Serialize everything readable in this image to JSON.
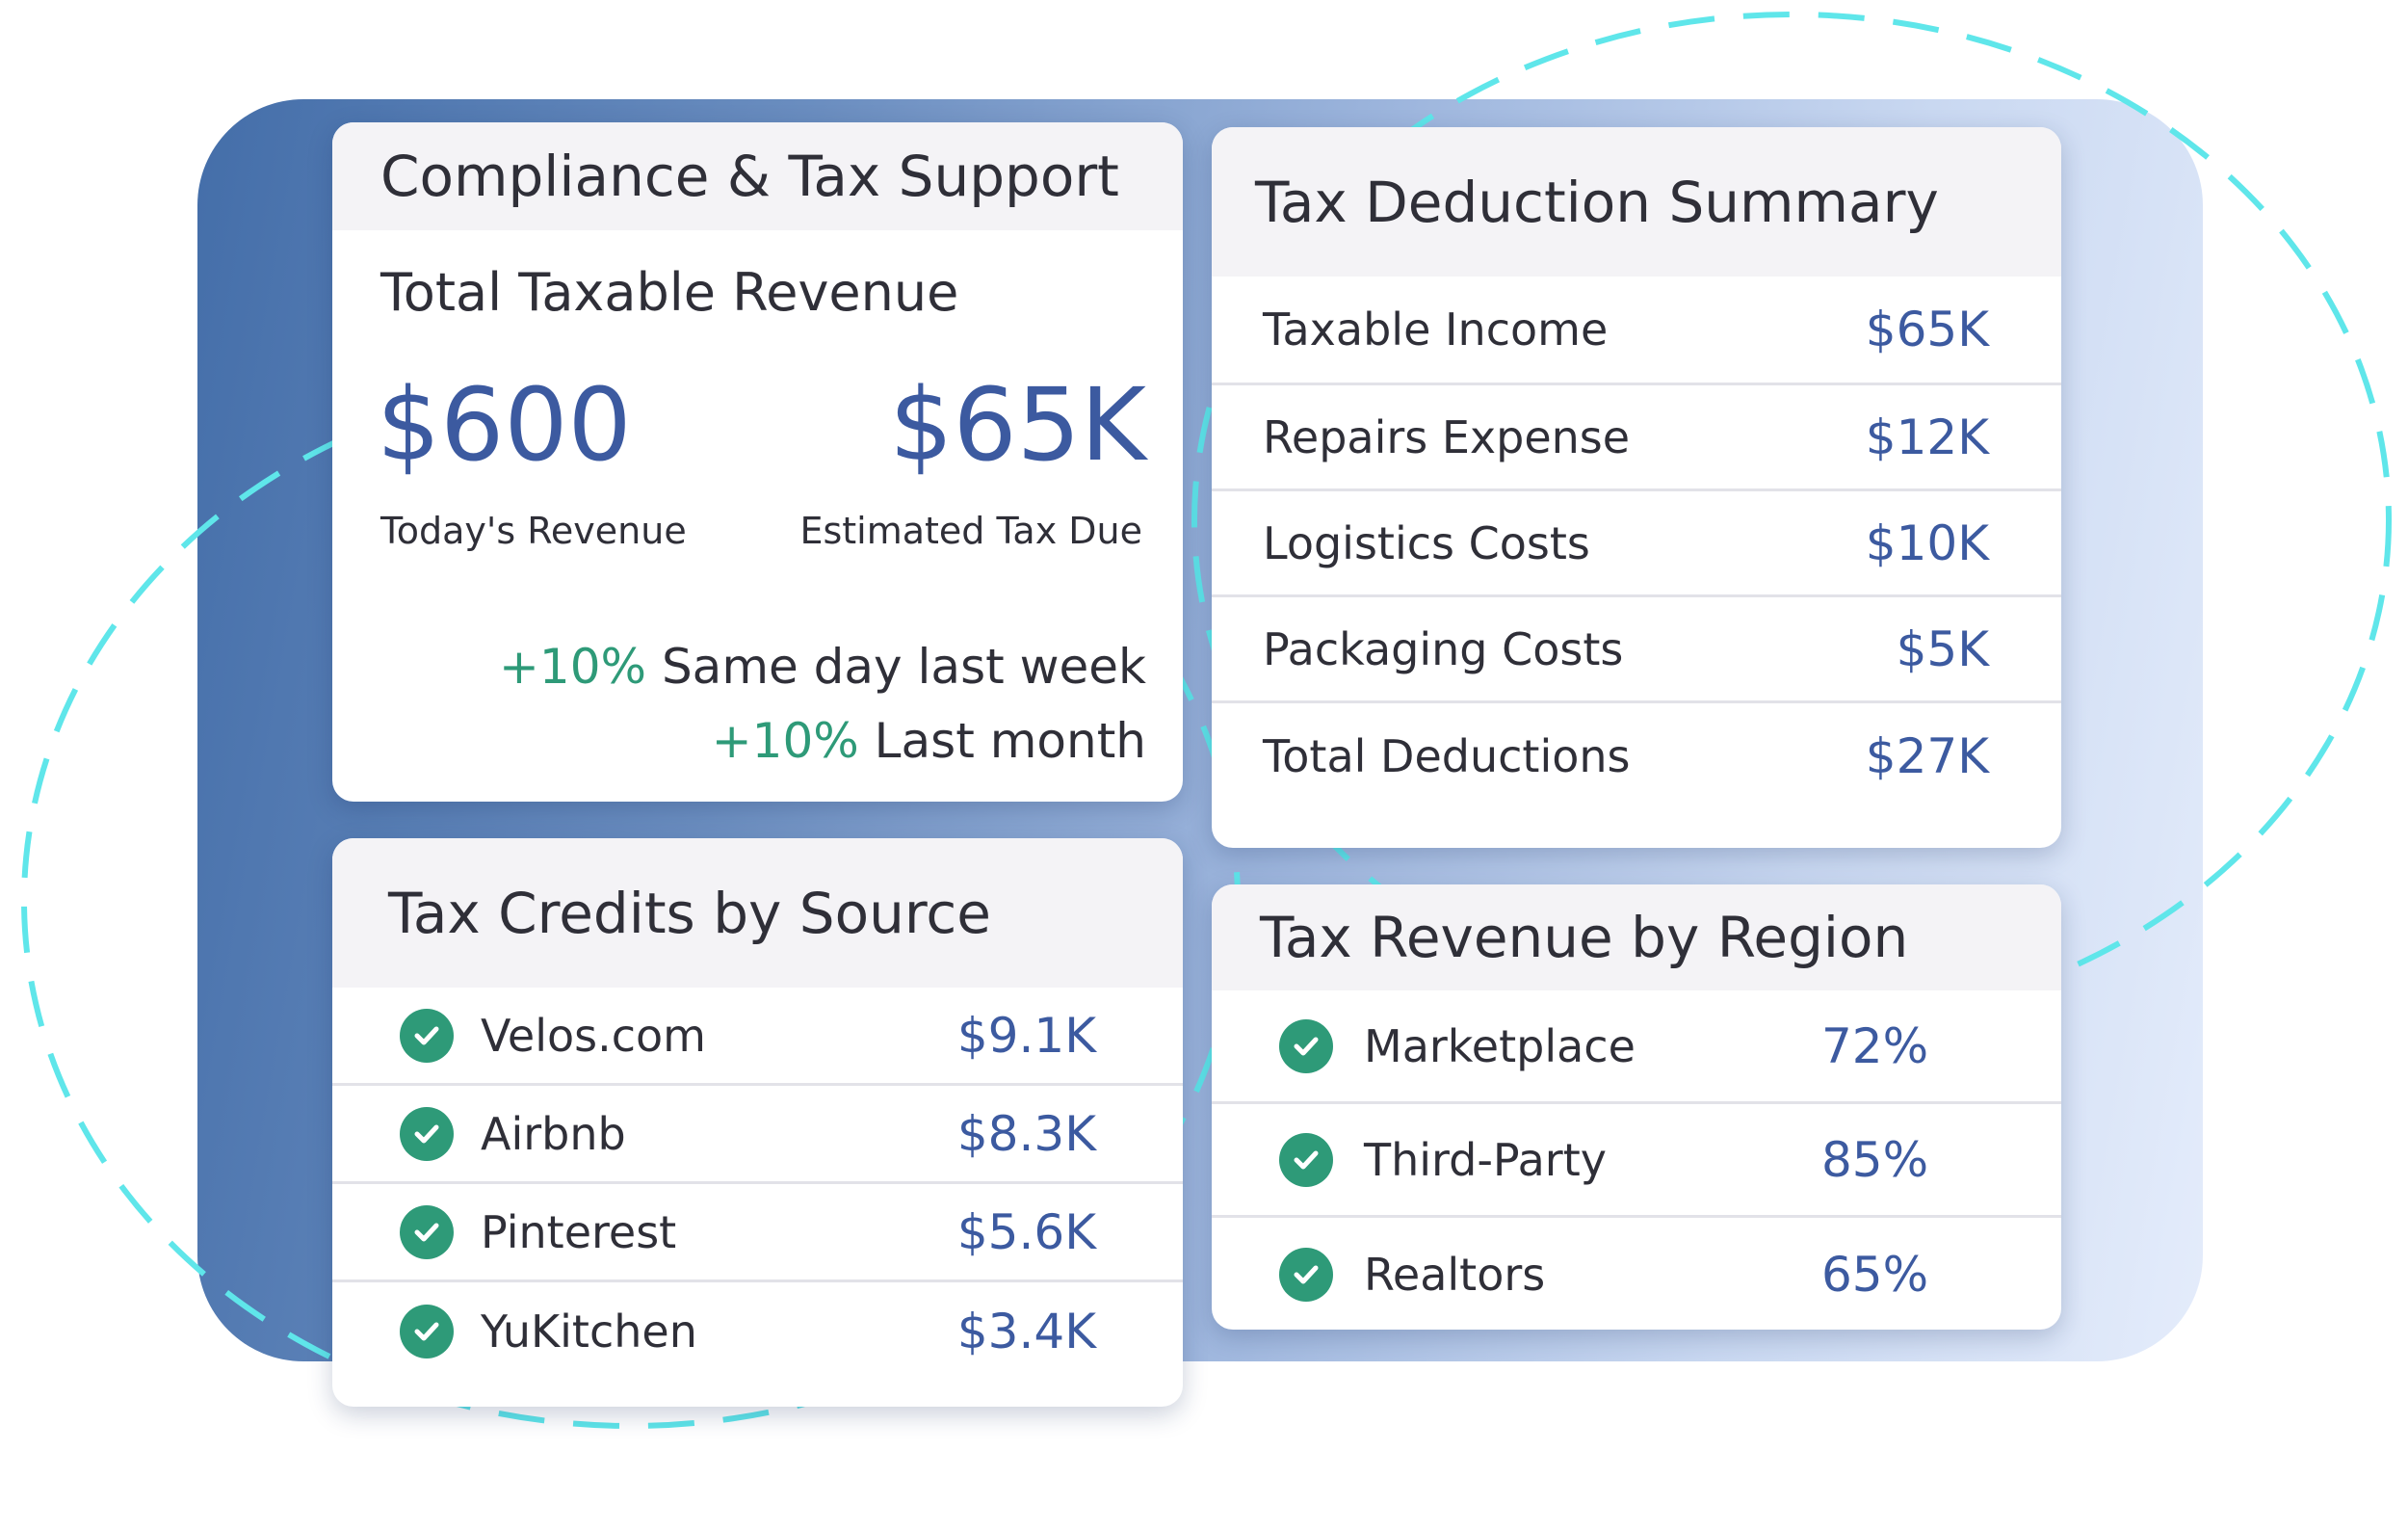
{
  "compliance": {
    "title": "Compliance & Tax Support",
    "subtitle": "Total Taxable Revenue",
    "todays_revenue_value": "$600",
    "todays_revenue_label": "Today's Revenue",
    "estimated_tax_value": "$65K",
    "estimated_tax_label": "Estimated Tax Due",
    "comparisons": [
      {
        "pct": "+10%",
        "text": "Same day last week"
      },
      {
        "pct": "+10%",
        "text": "Last month"
      }
    ]
  },
  "deductions": {
    "title": "Tax Deduction Summary",
    "rows": [
      {
        "label": "Taxable Income",
        "value": "$65K"
      },
      {
        "label": "Repairs Expense",
        "value": "$12K"
      },
      {
        "label": "Logistics Costs",
        "value": "$10K"
      },
      {
        "label": "Packaging Costs",
        "value": "$5K"
      },
      {
        "label": "Total Deductions",
        "value": "$27K"
      }
    ]
  },
  "credits": {
    "title": "Tax Credits by Source",
    "rows": [
      {
        "label": "Velos.com",
        "value": "$9.1K"
      },
      {
        "label": "Airbnb",
        "value": "$8.3K"
      },
      {
        "label": "Pinterest",
        "value": "$5.6K"
      },
      {
        "label": "YuKitchen",
        "value": "$3.4K"
      }
    ]
  },
  "regions": {
    "title": "Tax Revenue by Region",
    "rows": [
      {
        "label": "Marketplace",
        "value": "72%"
      },
      {
        "label": "Third-Party",
        "value": "85%"
      },
      {
        "label": "Realtors",
        "value": "65%"
      }
    ]
  },
  "colors": {
    "accent_blue": "#3c5aa0",
    "success_green": "#2e9a78",
    "header_bg": "#f4f3f6",
    "dashed_ring": "#5fe6ea"
  }
}
